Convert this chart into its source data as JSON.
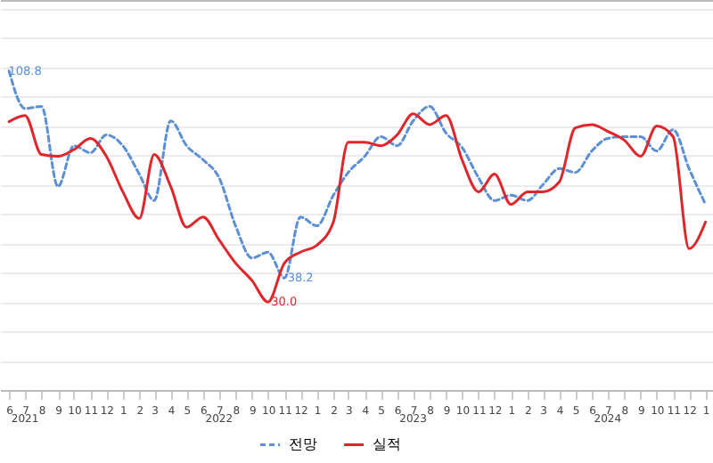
{
  "chart_data": {
    "type": "line",
    "x": [
      "2021-06",
      "2021-07",
      "2021-08",
      "2021-09",
      "2021-10",
      "2021-11",
      "2021-12",
      "2022-01",
      "2022-02",
      "2022-03",
      "2022-04",
      "2022-05",
      "2022-06",
      "2022-07",
      "2022-08",
      "2022-09",
      "2022-10",
      "2022-11",
      "2022-12",
      "2023-01",
      "2023-02",
      "2023-03",
      "2023-04",
      "2023-05",
      "2023-06",
      "2023-07",
      "2023-08",
      "2023-09",
      "2023-10",
      "2023-11",
      "2023-12",
      "2024-01",
      "2024-02",
      "2024-03",
      "2024-04",
      "2024-05",
      "2024-06",
      "2024-07",
      "2024-08",
      "2024-09",
      "2024-10",
      "2024-11",
      "2024-12",
      "2025-01"
    ],
    "xlim": [
      "2021-05-15",
      "2025-01-15"
    ],
    "xticks": [
      {
        "value": "2021-06",
        "label": "6"
      },
      {
        "value": "2021-07",
        "label": "7"
      },
      {
        "value": "2021-08",
        "label": "8"
      },
      {
        "value": "2021-09",
        "label": "9"
      },
      {
        "value": "2021-10",
        "label": "10"
      },
      {
        "value": "2021-11",
        "label": "11"
      },
      {
        "value": "2021-12",
        "label": "12"
      },
      {
        "value": "2022-01",
        "label": "1"
      },
      {
        "value": "2022-02",
        "label": "2"
      },
      {
        "value": "2022-03",
        "label": "3"
      },
      {
        "value": "2022-04",
        "label": "4"
      },
      {
        "value": "2022-05",
        "label": "5"
      },
      {
        "value": "2022-06",
        "label": "6"
      },
      {
        "value": "2022-07",
        "label": "7"
      },
      {
        "value": "2022-08",
        "label": "8"
      },
      {
        "value": "2022-09",
        "label": "9"
      },
      {
        "value": "2022-10",
        "label": "10"
      },
      {
        "value": "2022-11",
        "label": "11"
      },
      {
        "value": "2022-12",
        "label": "12"
      },
      {
        "value": "2023-01",
        "label": "1"
      },
      {
        "value": "2023-02",
        "label": "2"
      },
      {
        "value": "2023-03",
        "label": "3"
      },
      {
        "value": "2023-04",
        "label": "4"
      },
      {
        "value": "2023-05",
        "label": "5"
      },
      {
        "value": "2023-06",
        "label": "6"
      },
      {
        "value": "2023-07",
        "label": "7"
      },
      {
        "value": "2023-08",
        "label": "8"
      },
      {
        "value": "2023-09",
        "label": "9"
      },
      {
        "value": "2023-10",
        "label": "10"
      },
      {
        "value": "2023-11",
        "label": "11"
      },
      {
        "value": "2023-12",
        "label": "12"
      },
      {
        "value": "2024-01",
        "label": "1"
      },
      {
        "value": "2024-02",
        "label": "2"
      },
      {
        "value": "2024-03",
        "label": "3"
      },
      {
        "value": "2024-04",
        "label": "4"
      },
      {
        "value": "2024-05",
        "label": "5"
      },
      {
        "value": "2024-06",
        "label": "6"
      },
      {
        "value": "2024-07",
        "label": "7"
      },
      {
        "value": "2024-08",
        "label": "8"
      },
      {
        "value": "2024-09",
        "label": "9"
      },
      {
        "value": "2024-10",
        "label": "10"
      },
      {
        "value": "2024-11",
        "label": "11"
      },
      {
        "value": "2024-12",
        "label": "12"
      },
      {
        "value": "2025-01",
        "label": "1"
      }
    ],
    "x2ticks": [
      {
        "value": "2021-07",
        "label": "2021"
      },
      {
        "value": "2022-07",
        "label": "2022"
      },
      {
        "value": "2023-07",
        "label": "2023"
      },
      {
        "value": "2024-07",
        "label": "2024"
      }
    ],
    "x2lim": [
      "2021-05-15",
      "2025-01-15"
    ],
    "ylim": [
      0,
      133
    ],
    "tick_labels": "x",
    "grid": "y",
    "legend": "bottom",
    "series": [
      {
        "name": "전망",
        "color": "#5b8fd6",
        "line_style": "dashed",
        "values": [
          108.8,
          96,
          96.7,
          69.4,
          83.3,
          80.9,
          87,
          83.3,
          73.6,
          64.6,
          91.8,
          83.3,
          78.5,
          72.4,
          56,
          45,
          47,
          38.2,
          59,
          56,
          66.4,
          74.2,
          79.7,
          86.4,
          83.3,
          91.8,
          96.7,
          87.6,
          82.7,
          72.4,
          64.6,
          66.4,
          64.6,
          70,
          75.5,
          74.2,
          81.5,
          85.8,
          86.4,
          86.4,
          81.5,
          88.8,
          75.5,
          63.3
        ],
        "value_labels": [
          "108.8",
          null,
          null,
          null,
          null,
          null,
          null,
          null,
          null,
          null,
          null,
          null,
          null,
          null,
          null,
          null,
          null,
          "38.2",
          null,
          null,
          null,
          null,
          null,
          null,
          null,
          null,
          null,
          null,
          null,
          null,
          null,
          null,
          null,
          null,
          null,
          null,
          null,
          null,
          null,
          null,
          null,
          null,
          null,
          null
        ]
      },
      {
        "name": "실적",
        "color": "#e0262b",
        "line_style": "solid",
        "values": [
          91.5,
          93.6,
          80.3,
          79.7,
          82,
          85.8,
          79.7,
          67.6,
          58.5,
          80.3,
          69.4,
          55.5,
          59,
          51.2,
          43.3,
          37.3,
          30.0,
          43.3,
          47,
          49.4,
          57.3,
          84.5,
          84.5,
          83.3,
          87,
          94.2,
          90.5,
          93.6,
          78.5,
          67.6,
          73.6,
          63.3,
          67.6,
          67.6,
          71,
          89.4,
          90.5,
          88.2,
          85.2,
          79.7,
          90,
          86.4,
          48.2,
          57.3
        ],
        "value_labels": [
          null,
          null,
          null,
          null,
          null,
          null,
          null,
          null,
          null,
          null,
          null,
          null,
          null,
          null,
          null,
          null,
          "30.0",
          null,
          null,
          null,
          null,
          null,
          null,
          null,
          null,
          null,
          null,
          null,
          null,
          null,
          null,
          null,
          null,
          null,
          null,
          null,
          null,
          null,
          null,
          null,
          null,
          null,
          null,
          null
        ]
      }
    ]
  }
}
